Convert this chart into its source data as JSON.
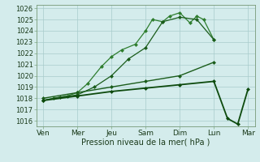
{
  "background_color": "#d4ecec",
  "grid_color": "#a8cccc",
  "xlabel": "Pression niveau de la mer( hPa )",
  "xlabels": [
    "Ven",
    "Mer",
    "Jeu",
    "Sam",
    "Dim",
    "Lun",
    "Mar"
  ],
  "xtick_pos": [
    0,
    1,
    2,
    3,
    4,
    5,
    6
  ],
  "ylim": [
    1015.5,
    1026.3
  ],
  "ytick_vals": [
    1016,
    1017,
    1018,
    1019,
    1020,
    1021,
    1022,
    1023,
    1024,
    1025,
    1026
  ],
  "lines": [
    {
      "x": [
        0.0,
        0.3,
        0.7,
        1.0,
        1.3,
        1.7,
        2.0,
        2.3,
        2.7,
        3.0,
        3.2,
        3.5,
        3.7,
        4.0,
        4.3,
        4.5,
        4.7,
        5.0
      ],
      "y": [
        1017.8,
        1018.0,
        1018.2,
        1018.5,
        1019.3,
        1020.8,
        1021.7,
        1022.3,
        1022.8,
        1024.0,
        1025.0,
        1024.8,
        1025.3,
        1025.6,
        1024.7,
        1025.3,
        1025.0,
        1023.2
      ],
      "color": "#2e7d2e",
      "lw": 0.9,
      "ms": 2.5
    },
    {
      "x": [
        0.0,
        0.5,
        1.0,
        1.5,
        2.0,
        2.5,
        3.0,
        3.5,
        4.0,
        4.5,
        5.0
      ],
      "y": [
        1017.8,
        1018.1,
        1018.3,
        1019.0,
        1020.0,
        1021.5,
        1022.5,
        1024.8,
        1025.2,
        1025.0,
        1023.2
      ],
      "color": "#1a5c1a",
      "lw": 0.9,
      "ms": 2.5
    },
    {
      "x": [
        0.0,
        1.0,
        2.0,
        3.0,
        4.0,
        5.0
      ],
      "y": [
        1018.0,
        1018.5,
        1019.0,
        1019.5,
        1020.0,
        1021.2
      ],
      "color": "#1a5c1a",
      "lw": 1.0,
      "ms": 2.5
    },
    {
      "x": [
        0.0,
        1.0,
        2.0,
        3.0,
        4.0,
        5.0,
        5.4,
        5.7,
        6.0
      ],
      "y": [
        1017.8,
        1018.2,
        1018.6,
        1018.9,
        1019.2,
        1019.5,
        1016.2,
        1015.7,
        1018.8
      ],
      "color": "#0d4a0d",
      "lw": 1.3,
      "ms": 2.5
    }
  ]
}
